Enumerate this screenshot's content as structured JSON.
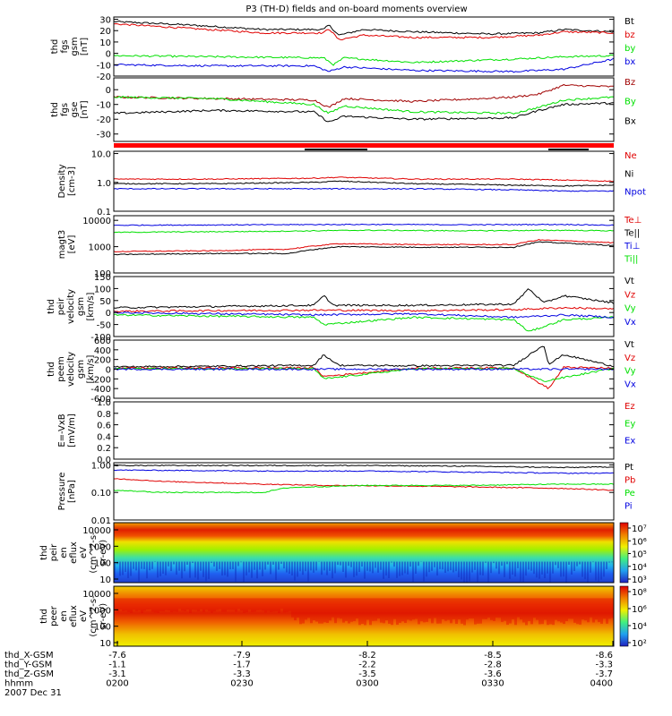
{
  "title": "P3 (TH-D) fields and on-board moments overview",
  "colors": {
    "black": "#000000",
    "red": "#e00000",
    "green": "#00e000",
    "blue": "#0000e0",
    "darkred": "#a00000"
  },
  "chart_data": [
    {
      "id": "fgs-gsm",
      "type": "line",
      "ylabel": [
        "thd",
        "fgs",
        "gsm",
        "[nT]"
      ],
      "ylim": [
        -20,
        32
      ],
      "yticks": [
        30,
        20,
        10,
        0,
        -10,
        -20
      ],
      "legend": [
        {
          "name": "Bt",
          "color": "#000000"
        },
        {
          "name": "bz",
          "color": "#e00000"
        },
        {
          "name": "by",
          "color": "#00e000"
        },
        {
          "name": "bx",
          "color": "#0000e0"
        }
      ],
      "series": [
        {
          "name": "Bt",
          "color": "#000000",
          "x": [
            0,
            0.15,
            0.3,
            0.42,
            0.43,
            0.45,
            0.5,
            0.6,
            0.75,
            0.85,
            0.9,
            1
          ],
          "y": [
            28,
            25,
            21,
            21,
            25,
            16,
            21,
            19,
            17,
            18,
            21,
            19
          ]
        },
        {
          "name": "bz",
          "color": "#e00000",
          "x": [
            0,
            0.15,
            0.3,
            0.42,
            0.43,
            0.45,
            0.5,
            0.6,
            0.75,
            0.85,
            0.9,
            1
          ],
          "y": [
            26,
            22,
            18,
            18,
            22,
            12,
            16,
            14,
            14,
            16,
            19,
            18
          ]
        },
        {
          "name": "by",
          "color": "#00e000",
          "x": [
            0,
            0.2,
            0.42,
            0.44,
            0.46,
            0.6,
            0.8,
            0.9,
            1
          ],
          "y": [
            -2,
            -3,
            -4,
            -10,
            -4,
            -8,
            -5,
            -3,
            -2
          ]
        },
        {
          "name": "bx",
          "color": "#0000e0",
          "x": [
            0,
            0.2,
            0.4,
            0.43,
            0.46,
            0.6,
            0.8,
            0.9,
            1
          ],
          "y": [
            -10,
            -11,
            -11,
            -16,
            -12,
            -15,
            -16,
            -14,
            -5
          ]
        }
      ]
    },
    {
      "id": "fgs-gsm-2",
      "type": "line",
      "ylabel": [
        "thd",
        "fgs",
        "gse",
        "[nT]"
      ],
      "ylim": [
        -35,
        8
      ],
      "yticks": [
        0,
        -10,
        -20,
        -30
      ],
      "legend": [
        {
          "name": "Bz",
          "color": "#a00000"
        },
        {
          "name": "By",
          "color": "#00e000"
        },
        {
          "name": "Bx",
          "color": "#000000"
        }
      ],
      "series": [
        {
          "name": "Bz",
          "color": "#a00000",
          "x": [
            0,
            0.2,
            0.4,
            0.43,
            0.46,
            0.6,
            0.8,
            0.85,
            0.9,
            1
          ],
          "y": [
            -5,
            -6,
            -7,
            -12,
            -6,
            -8,
            -5,
            -3,
            3,
            2
          ]
        },
        {
          "name": "By",
          "color": "#00e000",
          "x": [
            0,
            0.2,
            0.4,
            0.43,
            0.46,
            0.6,
            0.8,
            0.85,
            0.9,
            1
          ],
          "y": [
            -5,
            -6,
            -10,
            -16,
            -11,
            -15,
            -16,
            -12,
            -7,
            -5
          ]
        },
        {
          "name": "Bx",
          "color": "#000000",
          "x": [
            0,
            0.2,
            0.4,
            0.43,
            0.46,
            0.6,
            0.8,
            0.85,
            0.9,
            1
          ],
          "y": [
            -16,
            -14,
            -15,
            -22,
            -18,
            -20,
            -19,
            -14,
            -10,
            -9
          ]
        }
      ]
    },
    {
      "id": "density",
      "type": "line",
      "scale": "log",
      "ylabel": [
        "Density",
        "[cm-3]"
      ],
      "ylim": [
        0.1,
        12
      ],
      "yticks": [
        10.0,
        1.0,
        0.1
      ],
      "yticklabels": [
        "10.0",
        "1.0",
        "0.1"
      ],
      "legend": [
        {
          "name": "Ne",
          "color": "#e00000"
        },
        {
          "name": "Ni",
          "color": "#000000"
        },
        {
          "name": "Npot",
          "color": "#0000e0"
        }
      ],
      "series": [
        {
          "name": "Ne",
          "color": "#e00000",
          "x": [
            0,
            0.2,
            0.4,
            0.45,
            0.6,
            0.8,
            0.9,
            1
          ],
          "y": [
            1.3,
            1.3,
            1.4,
            1.5,
            1.3,
            1.3,
            1.2,
            1.1
          ]
        },
        {
          "name": "Ni",
          "color": "#000000",
          "x": [
            0,
            0.2,
            0.4,
            0.45,
            0.6,
            0.8,
            0.9,
            1
          ],
          "y": [
            0.9,
            0.9,
            1.0,
            1.1,
            0.9,
            0.8,
            0.75,
            0.8
          ]
        },
        {
          "name": "Npot",
          "color": "#0000e0",
          "x": [
            0,
            0.2,
            0.4,
            0.6,
            0.8,
            0.9,
            1
          ],
          "y": [
            0.6,
            0.6,
            0.6,
            0.6,
            0.55,
            0.5,
            0.5
          ]
        }
      ]
    },
    {
      "id": "temperature",
      "type": "line",
      "scale": "log",
      "ylabel": [
        "magt3",
        "[eV]"
      ],
      "ylim": [
        100,
        15000
      ],
      "yticks": [
        10000,
        1000,
        100
      ],
      "yticklabels": [
        "10000",
        "1000",
        "100"
      ],
      "legend": [
        {
          "name": "Te⊥",
          "color": "#e00000"
        },
        {
          "name": "Te||",
          "color": "#000000"
        },
        {
          "name": "Ti⊥",
          "color": "#0000e0"
        },
        {
          "name": "Ti||",
          "color": "#00e000"
        }
      ],
      "series": [
        {
          "name": "Ti⊥",
          "color": "#0000e0",
          "x": [
            0,
            0.3,
            0.5,
            0.7,
            0.9,
            1
          ],
          "y": [
            6500,
            6800,
            7000,
            6800,
            7000,
            6500
          ]
        },
        {
          "name": "Ti||",
          "color": "#00e000",
          "x": [
            0,
            0.3,
            0.5,
            0.7,
            0.9,
            1
          ],
          "y": [
            3500,
            3800,
            4200,
            4000,
            4200,
            4000
          ]
        },
        {
          "name": "Te⊥",
          "color": "#e00000",
          "x": [
            0,
            0.2,
            0.35,
            0.45,
            0.6,
            0.8,
            0.85,
            1
          ],
          "y": [
            650,
            700,
            800,
            1300,
            1200,
            1200,
            1800,
            1400
          ]
        },
        {
          "name": "Te||",
          "color": "#000000",
          "x": [
            0,
            0.2,
            0.35,
            0.45,
            0.6,
            0.8,
            0.85,
            1
          ],
          "y": [
            500,
            550,
            550,
            1000,
            950,
            950,
            1500,
            1100
          ]
        }
      ]
    },
    {
      "id": "peir-velocity",
      "type": "line",
      "ylabel": [
        "thd",
        "peir",
        "velocity",
        "gsm",
        "[km/s]"
      ],
      "ylim": [
        -100,
        150
      ],
      "yticks": [
        150,
        100,
        50,
        0,
        -50,
        -100
      ],
      "legend": [
        {
          "name": "Vt",
          "color": "#000000"
        },
        {
          "name": "Vz",
          "color": "#e00000"
        },
        {
          "name": "Vy",
          "color": "#00e000"
        },
        {
          "name": "Vx",
          "color": "#0000e0"
        }
      ],
      "series": [
        {
          "name": "Vt",
          "color": "#000000",
          "x": [
            0,
            0.2,
            0.4,
            0.42,
            0.44,
            0.6,
            0.8,
            0.83,
            0.86,
            0.9,
            1
          ],
          "y": [
            20,
            25,
            30,
            70,
            30,
            30,
            35,
            100,
            40,
            70,
            40
          ]
        },
        {
          "name": "Vz",
          "color": "#e00000",
          "x": [
            0,
            0.2,
            0.4,
            0.6,
            0.8,
            0.9,
            1
          ],
          "y": [
            5,
            8,
            10,
            8,
            12,
            20,
            15
          ]
        },
        {
          "name": "Vy",
          "color": "#00e000",
          "x": [
            0,
            0.2,
            0.4,
            0.42,
            0.6,
            0.8,
            0.83,
            0.9,
            1
          ],
          "y": [
            -10,
            -15,
            -20,
            -50,
            -20,
            -30,
            -80,
            -30,
            -20
          ]
        },
        {
          "name": "Vx",
          "color": "#0000e0",
          "x": [
            0,
            0.2,
            0.4,
            0.6,
            0.8,
            0.9,
            1
          ],
          "y": [
            0,
            -5,
            -10,
            -5,
            -20,
            -10,
            -20
          ]
        }
      ]
    },
    {
      "id": "peem-velocity",
      "type": "line",
      "ylabel": [
        "thd",
        "peem",
        "velocity",
        "gsm",
        "[km/s]"
      ],
      "ylim": [
        -600,
        600
      ],
      "yticks": [
        600,
        400,
        200,
        0,
        -200,
        -400,
        -600
      ],
      "legend": [
        {
          "name": "Vt",
          "color": "#000000"
        },
        {
          "name": "Vz",
          "color": "#e00000"
        },
        {
          "name": "Vy",
          "color": "#00e000"
        },
        {
          "name": "Vx",
          "color": "#0000e0"
        }
      ],
      "series": [
        {
          "name": "Vt",
          "color": "#000000",
          "x": [
            0,
            0.2,
            0.4,
            0.42,
            0.45,
            0.6,
            0.8,
            0.86,
            0.87,
            0.9,
            1
          ],
          "y": [
            50,
            60,
            80,
            300,
            80,
            70,
            80,
            500,
            100,
            300,
            60
          ]
        },
        {
          "name": "Vz",
          "color": "#e00000",
          "x": [
            0,
            0.2,
            0.4,
            0.42,
            0.6,
            0.8,
            0.87,
            0.9,
            1
          ],
          "y": [
            20,
            25,
            30,
            -150,
            20,
            30,
            -400,
            40,
            20
          ]
        },
        {
          "name": "Vy",
          "color": "#00e000",
          "x": [
            0,
            0.4,
            0.42,
            0.6,
            0.8,
            0.86,
            1
          ],
          "y": [
            10,
            10,
            -200,
            10,
            10,
            -250,
            20
          ]
        },
        {
          "name": "Vx",
          "color": "#0000e0",
          "x": [
            0,
            0.5,
            1
          ],
          "y": [
            0,
            0,
            0
          ]
        }
      ]
    },
    {
      "id": "efield",
      "type": "line",
      "ylabel": [
        "E=-VxB",
        "[mV/m]"
      ],
      "ylim": [
        0,
        1.0
      ],
      "yticks": [
        1.0,
        0.8,
        0.6,
        0.4,
        0.2,
        0.0
      ],
      "yticklabels": [
        "1.0",
        "0.8",
        "0.6",
        "0.4",
        "0.2",
        "0.0"
      ],
      "legend": [
        {
          "name": "Ez",
          "color": "#e00000"
        },
        {
          "name": "Ey",
          "color": "#00e000"
        },
        {
          "name": "Ex",
          "color": "#0000e0"
        }
      ],
      "series": []
    },
    {
      "id": "pressure",
      "type": "line",
      "scale": "log",
      "ylabel": [
        "Pressure",
        "[nPa]"
      ],
      "ylim": [
        0.01,
        1.2
      ],
      "yticks": [
        1.0,
        0.1,
        0.01
      ],
      "yticklabels": [
        "1.00",
        "0.10",
        "0.01"
      ],
      "legend": [
        {
          "name": "Pt",
          "color": "#000000"
        },
        {
          "name": "Pb",
          "color": "#e00000"
        },
        {
          "name": "Pe",
          "color": "#00e000"
        },
        {
          "name": "Pi",
          "color": "#0000e0"
        }
      ],
      "series": [
        {
          "name": "Pt",
          "color": "#000000",
          "x": [
            0,
            0.3,
            0.5,
            0.7,
            0.9,
            1
          ],
          "y": [
            0.95,
            0.95,
            0.95,
            0.9,
            0.8,
            0.85
          ]
        },
        {
          "name": "Pi",
          "color": "#0000e0",
          "x": [
            0,
            0.3,
            0.5,
            0.7,
            0.9,
            1
          ],
          "y": [
            0.65,
            0.6,
            0.6,
            0.55,
            0.5,
            0.5
          ]
        },
        {
          "name": "Pb",
          "color": "#e00000",
          "x": [
            0,
            0.1,
            0.3,
            0.42,
            0.6,
            0.8,
            0.9,
            1
          ],
          "y": [
            0.32,
            0.25,
            0.2,
            0.18,
            0.17,
            0.15,
            0.14,
            0.12
          ]
        },
        {
          "name": "Pe",
          "color": "#00e000",
          "x": [
            0,
            0.1,
            0.3,
            0.35,
            0.5,
            0.7,
            0.9,
            1
          ],
          "y": [
            0.12,
            0.1,
            0.1,
            0.15,
            0.18,
            0.18,
            0.2,
            0.2
          ]
        }
      ]
    },
    {
      "id": "peir-spectrogram",
      "type": "heatmap",
      "ylabel": [
        "thd",
        "peir",
        "en",
        "eflux",
        "eV",
        "(cm^2-s-",
        "sr-eV)"
      ],
      "yticks": [
        "10000",
        "1000",
        "100",
        "10"
      ],
      "colorbar_ticks": [
        "10⁷",
        "10⁶",
        "10⁵",
        "10⁴",
        "10³"
      ]
    },
    {
      "id": "peer-spectrogram",
      "type": "heatmap",
      "ylabel": [
        "thd",
        "peer",
        "en",
        "eflux",
        "eV",
        "(cm^2-s-",
        "sr-eV)"
      ],
      "yticks": [
        "10000",
        "1000",
        "100",
        "10"
      ],
      "colorbar_ticks": [
        "10⁸",
        "10⁶",
        "10⁴",
        "10²"
      ]
    }
  ],
  "xaxis": {
    "rows": [
      {
        "label": "thd_X-GSM",
        "values": [
          "-7.6",
          "-7.9",
          "-8.2",
          "-8.5",
          "-8.6"
        ]
      },
      {
        "label": "thd_Y-GSM",
        "values": [
          "-1.1",
          "-1.7",
          "-2.2",
          "-2.8",
          "-3.3"
        ]
      },
      {
        "label": "thd_Z-GSM",
        "values": [
          "-3.1",
          "-3.3",
          "-3.5",
          "-3.6",
          "-3.7"
        ]
      },
      {
        "label": "hhmm",
        "values": [
          "0200",
          "0230",
          "0300",
          "0330",
          "0400"
        ]
      }
    ],
    "date": "2007 Dec 31"
  }
}
